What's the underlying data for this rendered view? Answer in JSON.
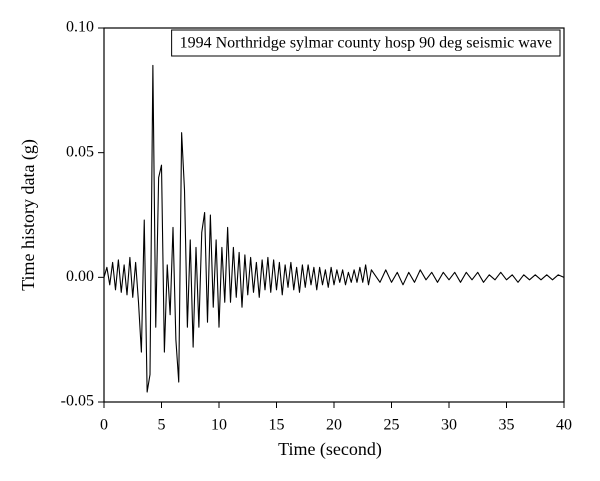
{
  "chart_data": {
    "type": "line",
    "xlabel": "Time (second)",
    "ylabel": "Time history data (g)",
    "x": [
      0,
      0.25,
      0.5,
      0.75,
      1,
      1.25,
      1.5,
      1.75,
      2,
      2.25,
      2.5,
      2.75,
      3,
      3.25,
      3.5,
      3.75,
      4,
      4.25,
      4.5,
      4.75,
      5,
      5.25,
      5.5,
      5.75,
      6,
      6.25,
      6.5,
      6.75,
      7,
      7.25,
      7.5,
      7.75,
      8,
      8.25,
      8.5,
      8.75,
      9,
      9.25,
      9.5,
      9.75,
      10,
      10.25,
      10.5,
      10.75,
      11,
      11.25,
      11.5,
      11.75,
      12,
      12.25,
      12.5,
      12.75,
      13,
      13.25,
      13.5,
      13.75,
      14,
      14.25,
      14.5,
      14.75,
      15,
      15.25,
      15.5,
      15.75,
      16,
      16.25,
      16.5,
      16.75,
      17,
      17.25,
      17.5,
      17.75,
      18,
      18.25,
      18.5,
      18.75,
      19,
      19.25,
      19.5,
      19.75,
      20,
      20.25,
      20.5,
      20.75,
      21,
      21.25,
      21.5,
      21.75,
      22,
      22.25,
      22.5,
      22.75,
      23,
      23.25,
      24,
      24.5,
      25,
      25.5,
      26,
      26.5,
      27,
      27.5,
      28,
      28.5,
      29,
      29.5,
      30,
      30.5,
      31,
      31.5,
      32,
      32.5,
      33,
      33.5,
      34,
      34.5,
      35,
      35.5,
      36,
      36.5,
      37,
      37.5,
      38,
      38.5,
      39,
      39.5,
      40
    ],
    "series": [
      {
        "name": "1994 Northridge sylmar county hosp 90 deg seismic wave",
        "color": "#000000",
        "values": [
          0,
          0.004,
          -0.003,
          0.006,
          -0.005,
          0.007,
          -0.006,
          0.005,
          -0.007,
          0.008,
          -0.008,
          0.006,
          -0.01,
          -0.03,
          0.023,
          -0.046,
          -0.039,
          0.085,
          -0.02,
          0.04,
          0.045,
          -0.03,
          0.005,
          -0.015,
          0.02,
          -0.025,
          -0.042,
          0.058,
          0.035,
          -0.02,
          0.015,
          -0.028,
          0.012,
          -0.02,
          0.018,
          0.026,
          -0.018,
          0.025,
          -0.012,
          0.015,
          -0.02,
          0.012,
          -0.01,
          0.02,
          -0.01,
          0.012,
          -0.008,
          0.01,
          -0.012,
          0.009,
          -0.007,
          0.008,
          -0.006,
          0.006,
          -0.008,
          0.007,
          -0.005,
          0.008,
          -0.006,
          0.007,
          -0.005,
          0.006,
          -0.007,
          0.005,
          -0.004,
          0.006,
          -0.005,
          0.004,
          -0.006,
          0.005,
          -0.004,
          0.005,
          -0.003,
          0.004,
          -0.005,
          0.004,
          -0.003,
          0.003,
          -0.004,
          0.004,
          -0.003,
          0.003,
          -0.002,
          0.003,
          -0.003,
          0.002,
          -0.002,
          0.003,
          -0.002,
          0.004,
          -0.002,
          0.005,
          -0.003,
          0.003,
          -0.002,
          0.003,
          -0.002,
          0.002,
          -0.003,
          0.002,
          -0.002,
          0.003,
          -0.001,
          0.002,
          -0.002,
          0.002,
          -0.001,
          0.002,
          -0.002,
          0.002,
          -0.001,
          0.002,
          -0.002,
          0.001,
          -0.001,
          0.002,
          -0.001,
          0.001,
          -0.002,
          0.001,
          -0.001,
          0.001,
          -0.001,
          0.001,
          -0.001,
          0.001,
          0
        ]
      }
    ],
    "xlim": [
      0,
      40
    ],
    "xticks": [
      0,
      5,
      10,
      15,
      20,
      25,
      30,
      35,
      40
    ],
    "ylim": [
      -0.05,
      0.1
    ],
    "yticks": [
      -0.05,
      {
        "value": 0,
        "label": "0.00"
      },
      0.05,
      {
        "value": 0.1,
        "label": "0.10"
      }
    ],
    "legend": "upper right"
  }
}
